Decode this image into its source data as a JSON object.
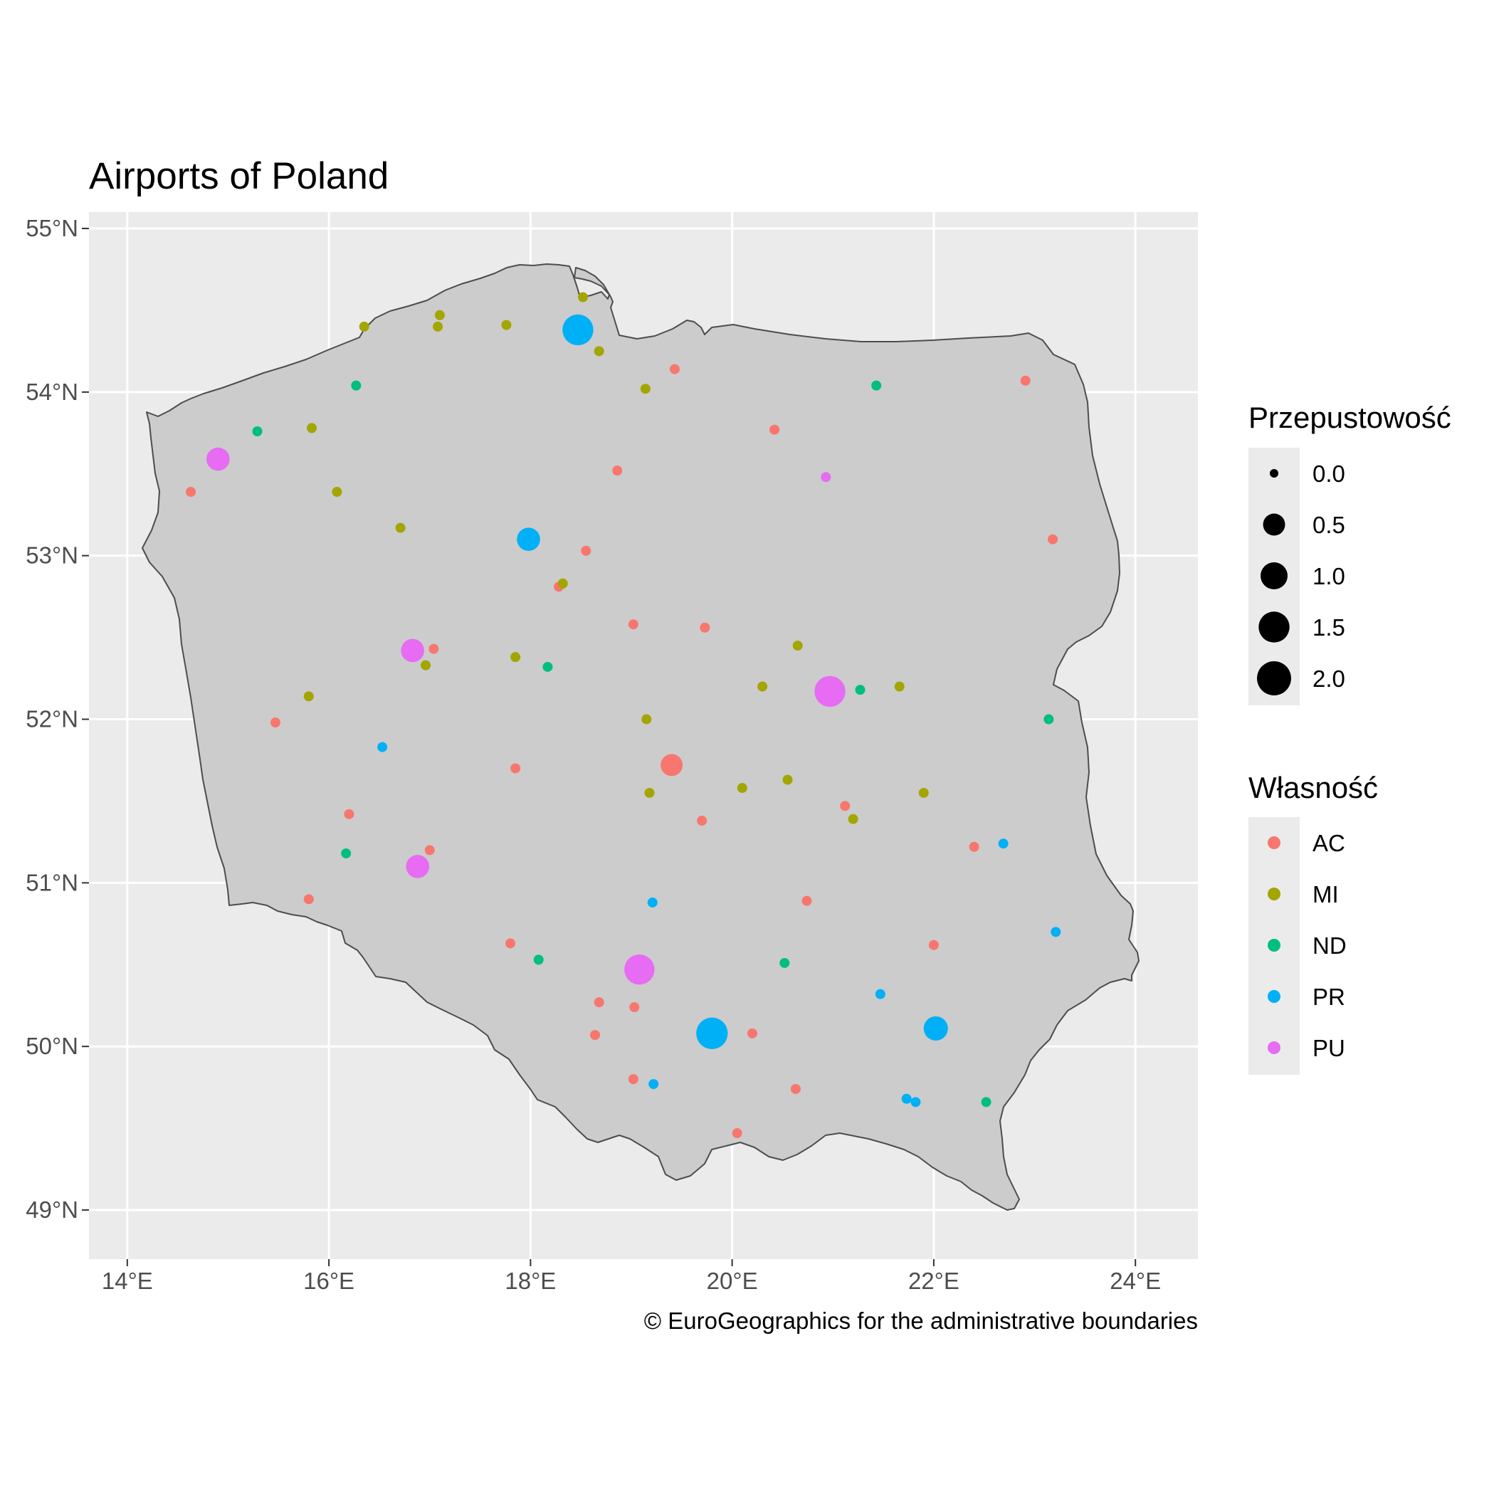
{
  "title": "Airports of Poland",
  "caption": "© EuroGeographics for the administrative boundaries",
  "chart_data": {
    "type": "scatter",
    "x_ticks": [
      "14°E",
      "16°E",
      "18°E",
      "20°E",
      "22°E",
      "24°E"
    ],
    "y_ticks": [
      "49°N",
      "50°N",
      "51°N",
      "52°N",
      "53°N",
      "54°N",
      "55°N"
    ],
    "x_tick_values": [
      14,
      16,
      18,
      20,
      22,
      24
    ],
    "y_tick_values": [
      49,
      50,
      51,
      52,
      53,
      54,
      55
    ],
    "xlim": [
      13.62,
      24.62
    ],
    "ylim": [
      48.7,
      55.1
    ],
    "grid": true,
    "legend_position": "right",
    "size_legend": {
      "title": "Przepustowość",
      "values": [
        0.0,
        0.5,
        1.0,
        1.5,
        2.0
      ],
      "labels": [
        "0.0",
        "0.5",
        "1.0",
        "1.5",
        "2.0"
      ]
    },
    "color_legend": {
      "title": "Własność",
      "categories": [
        "AC",
        "MI",
        "ND",
        "PR",
        "PU"
      ],
      "colors": [
        "#F8766D",
        "#A3A500",
        "#00BF7D",
        "#00B0F6",
        "#E76BF3"
      ]
    },
    "points": [
      {
        "lon": 14.63,
        "lat": 53.39,
        "group": "AC",
        "size": 0.0
      },
      {
        "lon": 15.47,
        "lat": 51.98,
        "group": "AC",
        "size": 0.0
      },
      {
        "lon": 15.8,
        "lat": 50.9,
        "group": "AC",
        "size": 0.0
      },
      {
        "lon": 16.2,
        "lat": 51.42,
        "group": "AC",
        "size": 0.0
      },
      {
        "lon": 17.04,
        "lat": 52.43,
        "group": "AC",
        "size": 0.0
      },
      {
        "lon": 17.0,
        "lat": 51.2,
        "group": "AC",
        "size": 0.0
      },
      {
        "lon": 17.85,
        "lat": 51.7,
        "group": "AC",
        "size": 0.0
      },
      {
        "lon": 17.8,
        "lat": 50.63,
        "group": "AC",
        "size": 0.0
      },
      {
        "lon": 18.28,
        "lat": 52.81,
        "group": "AC",
        "size": 0.0
      },
      {
        "lon": 18.55,
        "lat": 53.03,
        "group": "AC",
        "size": 0.0
      },
      {
        "lon": 18.86,
        "lat": 53.52,
        "group": "AC",
        "size": 0.0
      },
      {
        "lon": 19.43,
        "lat": 54.14,
        "group": "AC",
        "size": 0.0
      },
      {
        "lon": 19.02,
        "lat": 52.58,
        "group": "AC",
        "size": 0.0
      },
      {
        "lon": 19.4,
        "lat": 51.72,
        "group": "AC",
        "size": 0.5
      },
      {
        "lon": 19.73,
        "lat": 52.56,
        "group": "AC",
        "size": 0.0
      },
      {
        "lon": 19.7,
        "lat": 51.38,
        "group": "AC",
        "size": 0.0
      },
      {
        "lon": 18.68,
        "lat": 50.27,
        "group": "AC",
        "size": 0.0
      },
      {
        "lon": 18.64,
        "lat": 50.07,
        "group": "AC",
        "size": 0.0
      },
      {
        "lon": 19.03,
        "lat": 50.24,
        "group": "AC",
        "size": 0.0
      },
      {
        "lon": 19.02,
        "lat": 49.8,
        "group": "AC",
        "size": 0.0
      },
      {
        "lon": 20.05,
        "lat": 49.47,
        "group": "AC",
        "size": 0.0
      },
      {
        "lon": 20.2,
        "lat": 50.08,
        "group": "AC",
        "size": 0.0
      },
      {
        "lon": 20.63,
        "lat": 49.74,
        "group": "AC",
        "size": 0.0
      },
      {
        "lon": 20.74,
        "lat": 50.89,
        "group": "AC",
        "size": 0.0
      },
      {
        "lon": 21.12,
        "lat": 51.47,
        "group": "AC",
        "size": 0.0
      },
      {
        "lon": 20.42,
        "lat": 53.77,
        "group": "AC",
        "size": 0.0
      },
      {
        "lon": 22.0,
        "lat": 50.62,
        "group": "AC",
        "size": 0.0
      },
      {
        "lon": 22.4,
        "lat": 51.22,
        "group": "AC",
        "size": 0.0
      },
      {
        "lon": 22.91,
        "lat": 54.07,
        "group": "AC",
        "size": 0.0
      },
      {
        "lon": 23.18,
        "lat": 53.1,
        "group": "AC",
        "size": 0.0
      },
      {
        "lon": 16.35,
        "lat": 54.4,
        "group": "MI",
        "size": 0.0
      },
      {
        "lon": 17.1,
        "lat": 54.47,
        "group": "MI",
        "size": 0.0
      },
      {
        "lon": 17.08,
        "lat": 54.4,
        "group": "MI",
        "size": 0.0
      },
      {
        "lon": 17.76,
        "lat": 54.41,
        "group": "MI",
        "size": 0.0
      },
      {
        "lon": 18.52,
        "lat": 54.58,
        "group": "MI",
        "size": 0.0
      },
      {
        "lon": 18.68,
        "lat": 54.25,
        "group": "MI",
        "size": 0.0
      },
      {
        "lon": 19.14,
        "lat": 54.02,
        "group": "MI",
        "size": 0.0
      },
      {
        "lon": 15.83,
        "lat": 53.78,
        "group": "MI",
        "size": 0.0
      },
      {
        "lon": 16.08,
        "lat": 53.39,
        "group": "MI",
        "size": 0.0
      },
      {
        "lon": 16.71,
        "lat": 53.17,
        "group": "MI",
        "size": 0.0
      },
      {
        "lon": 18.32,
        "lat": 52.83,
        "group": "MI",
        "size": 0.0
      },
      {
        "lon": 16.96,
        "lat": 52.33,
        "group": "MI",
        "size": 0.0
      },
      {
        "lon": 17.85,
        "lat": 52.38,
        "group": "MI",
        "size": 0.0
      },
      {
        "lon": 15.8,
        "lat": 52.14,
        "group": "MI",
        "size": 0.0
      },
      {
        "lon": 19.15,
        "lat": 52.0,
        "group": "MI",
        "size": 0.0
      },
      {
        "lon": 19.18,
        "lat": 51.55,
        "group": "MI",
        "size": 0.0
      },
      {
        "lon": 20.1,
        "lat": 51.58,
        "group": "MI",
        "size": 0.0
      },
      {
        "lon": 20.55,
        "lat": 51.63,
        "group": "MI",
        "size": 0.0
      },
      {
        "lon": 20.3,
        "lat": 52.2,
        "group": "MI",
        "size": 0.0
      },
      {
        "lon": 20.65,
        "lat": 52.45,
        "group": "MI",
        "size": 0.0
      },
      {
        "lon": 21.66,
        "lat": 52.2,
        "group": "MI",
        "size": 0.0
      },
      {
        "lon": 21.9,
        "lat": 51.55,
        "group": "MI",
        "size": 0.0
      },
      {
        "lon": 21.2,
        "lat": 51.39,
        "group": "MI",
        "size": 0.0
      },
      {
        "lon": 16.27,
        "lat": 54.04,
        "group": "ND",
        "size": 0.0
      },
      {
        "lon": 15.29,
        "lat": 53.76,
        "group": "ND",
        "size": 0.0
      },
      {
        "lon": 18.17,
        "lat": 52.32,
        "group": "ND",
        "size": 0.0
      },
      {
        "lon": 16.17,
        "lat": 51.18,
        "group": "ND",
        "size": 0.0
      },
      {
        "lon": 18.08,
        "lat": 50.53,
        "group": "ND",
        "size": 0.0
      },
      {
        "lon": 20.52,
        "lat": 50.51,
        "group": "ND",
        "size": 0.0
      },
      {
        "lon": 21.43,
        "lat": 54.04,
        "group": "ND",
        "size": 0.0
      },
      {
        "lon": 21.27,
        "lat": 52.18,
        "group": "ND",
        "size": 0.0
      },
      {
        "lon": 23.14,
        "lat": 52.0,
        "group": "ND",
        "size": 0.0
      },
      {
        "lon": 22.52,
        "lat": 49.66,
        "group": "ND",
        "size": 0.0
      },
      {
        "lon": 18.47,
        "lat": 54.38,
        "group": "PR",
        "size": 1.5
      },
      {
        "lon": 17.98,
        "lat": 53.1,
        "group": "PR",
        "size": 0.6
      },
      {
        "lon": 16.53,
        "lat": 51.83,
        "group": "PR",
        "size": 0.0
      },
      {
        "lon": 19.21,
        "lat": 50.88,
        "group": "PR",
        "size": 0.0
      },
      {
        "lon": 19.8,
        "lat": 50.08,
        "group": "PR",
        "size": 1.6
      },
      {
        "lon": 19.22,
        "lat": 49.77,
        "group": "PR",
        "size": 0.0
      },
      {
        "lon": 22.02,
        "lat": 50.11,
        "group": "PR",
        "size": 0.7
      },
      {
        "lon": 21.47,
        "lat": 50.32,
        "group": "PR",
        "size": 0.0
      },
      {
        "lon": 21.73,
        "lat": 49.68,
        "group": "PR",
        "size": 0.0
      },
      {
        "lon": 21.82,
        "lat": 49.66,
        "group": "PR",
        "size": 0.0
      },
      {
        "lon": 22.69,
        "lat": 51.24,
        "group": "PR",
        "size": 0.0
      },
      {
        "lon": 23.21,
        "lat": 50.7,
        "group": "PR",
        "size": 0.0
      },
      {
        "lon": 14.9,
        "lat": 53.59,
        "group": "PU",
        "size": 0.6
      },
      {
        "lon": 16.83,
        "lat": 52.42,
        "group": "PU",
        "size": 0.6
      },
      {
        "lon": 16.88,
        "lat": 51.1,
        "group": "PU",
        "size": 0.6
      },
      {
        "lon": 19.08,
        "lat": 50.47,
        "group": "PU",
        "size": 1.4
      },
      {
        "lon": 20.97,
        "lat": 52.17,
        "group": "PU",
        "size": 1.5
      },
      {
        "lon": 20.93,
        "lat": 53.48,
        "group": "PU",
        "size": 0.0
      }
    ]
  }
}
